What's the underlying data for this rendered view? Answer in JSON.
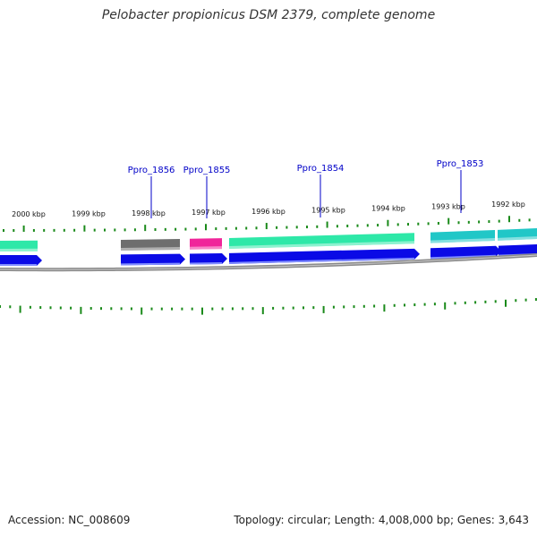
{
  "title": "Pelobacter propionicus DSM 2379, complete genome",
  "footer": {
    "accession": "Accession: NC_008609",
    "summary": "Topology: circular; Length: 4,008,000 bp; Genes: 3,643"
  },
  "colors": {
    "tick": "#1a8a1a",
    "locus_label": "#0000c8",
    "backbone": "#8a8a8a",
    "cds_arrow": "#0a0ae6",
    "teal_feature": "#21c7c7",
    "green_feature": "#2ee8a8",
    "gray_feature": "#6e6e6e",
    "pink_feature": "#f0259a"
  },
  "scale_labels": [
    "2000 kbp",
    "1999 kbp",
    "1998 kbp",
    "1997 kbp",
    "1996 kbp",
    "1995 kbp",
    "1994 kbp",
    "1993 kbp",
    "1992 kbp"
  ],
  "loci": [
    "Ppro_1856",
    "Ppro_1855",
    "Ppro_1854",
    "Ppro_1853"
  ]
}
